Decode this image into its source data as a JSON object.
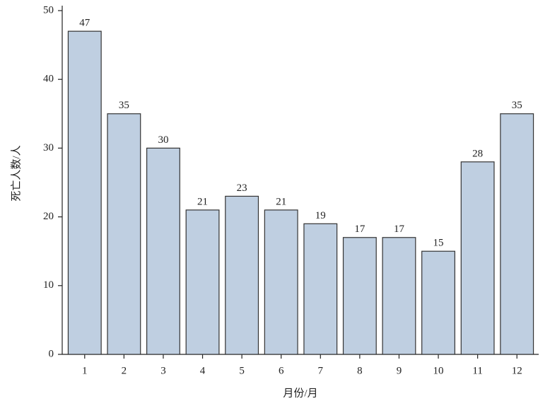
{
  "chart_data": {
    "type": "bar",
    "categories": [
      "1",
      "2",
      "3",
      "4",
      "5",
      "6",
      "7",
      "8",
      "9",
      "10",
      "11",
      "12"
    ],
    "values": [
      47,
      35,
      30,
      21,
      23,
      21,
      19,
      17,
      17,
      15,
      28,
      35
    ],
    "color": "#bfcfe1",
    "xlabel": "月份/月",
    "ylabel": "死亡人数/人",
    "ylim": [
      0,
      50
    ],
    "yticks": [
      0,
      10,
      20,
      30,
      40,
      50
    ]
  }
}
